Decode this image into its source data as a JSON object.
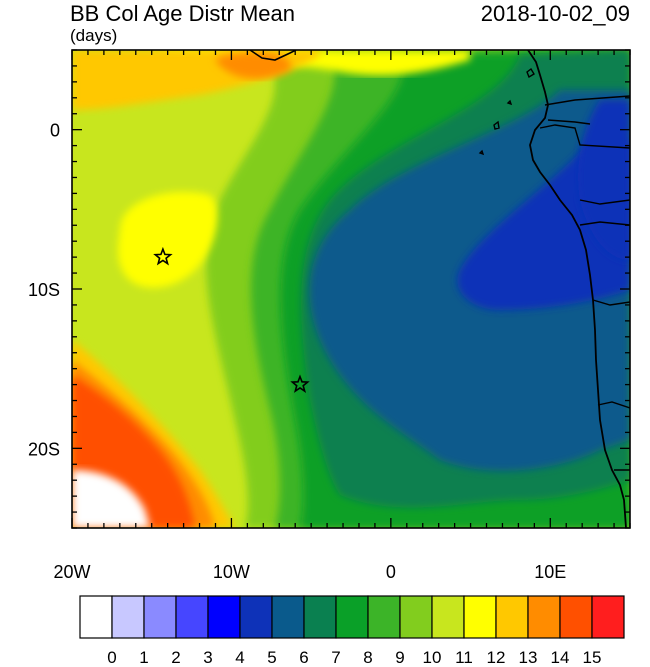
{
  "header": {
    "title": "BB Col Age Distr Mean",
    "units": "(days)",
    "timestamp": "2018-10-02_09"
  },
  "map": {
    "lon_range": [
      -20,
      15
    ],
    "lat_range": [
      -25,
      5
    ],
    "x_ticks": [
      {
        "value": -20,
        "label": "20W"
      },
      {
        "value": -10,
        "label": "10W"
      },
      {
        "value": 0,
        "label": "0"
      },
      {
        "value": 10,
        "label": "10E"
      }
    ],
    "y_ticks": [
      {
        "value": 0,
        "label": "0"
      },
      {
        "value": -10,
        "label": "10S"
      },
      {
        "value": -20,
        "label": "20S"
      }
    ],
    "markers": [
      {
        "lon": -14.3,
        "lat": -8.0,
        "symbol": "star"
      },
      {
        "lon": -5.7,
        "lat": -16.0,
        "symbol": "star"
      }
    ]
  },
  "colorbar": {
    "labels": [
      "0",
      "1",
      "2",
      "3",
      "4",
      "5",
      "6",
      "7",
      "8",
      "9",
      "10",
      "11",
      "12",
      "13",
      "14",
      "15"
    ],
    "colors": [
      "#ffffff",
      "#c8c8ff",
      "#8a8aff",
      "#4646ff",
      "#0000ff",
      "#0e32b8",
      "#0a5a8c",
      "#0a8050",
      "#0aa028",
      "#3cb428",
      "#82cd1e",
      "#c8e61e",
      "#ffff00",
      "#ffc800",
      "#ff8c00",
      "#ff5000",
      "#ff1e1e"
    ]
  }
}
